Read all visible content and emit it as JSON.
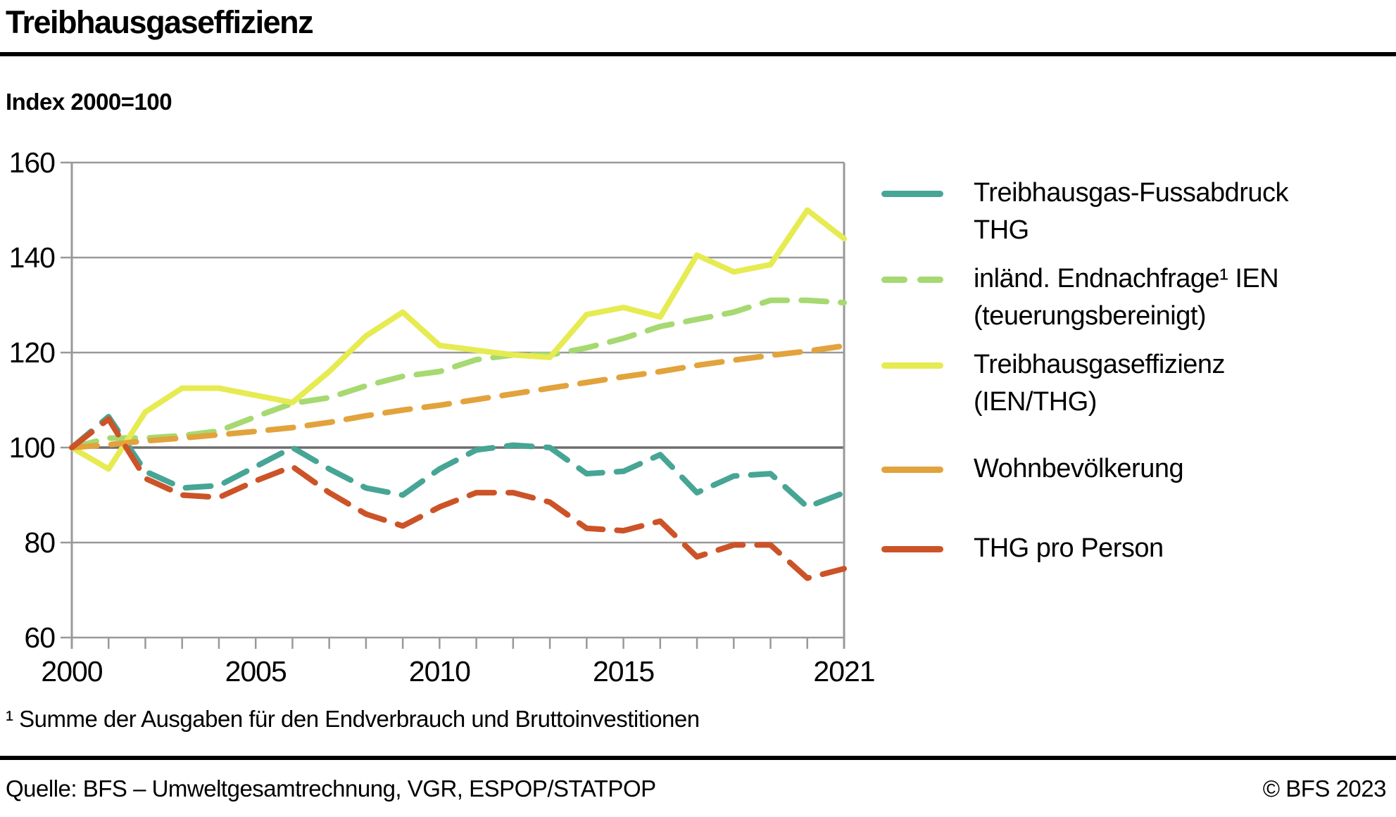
{
  "header": {
    "title": "Treibhausgaseffizienz"
  },
  "subtitle": "Index 2000=100",
  "chart_data": {
    "type": "line",
    "title": "Treibhausgaseffizienz",
    "unit_note": "Index 2000=100",
    "x": [
      2000,
      2001,
      2002,
      2003,
      2004,
      2005,
      2006,
      2007,
      2008,
      2009,
      2010,
      2011,
      2012,
      2013,
      2014,
      2015,
      2016,
      2017,
      2018,
      2019,
      2020,
      2021
    ],
    "x_range": [
      2000,
      2021
    ],
    "y_range": [
      60,
      160
    ],
    "yticks": [
      60,
      80,
      100,
      120,
      140,
      160
    ],
    "xtick_positions": [
      2000,
      2005,
      2010,
      2015,
      2021
    ],
    "xtick_labels": [
      "2000",
      "2005",
      "2010",
      "2015",
      "2021"
    ],
    "emphasized_gridline": 100,
    "grid": true,
    "legend_position": "right",
    "series": [
      {
        "key": "thg",
        "name": "Treibhausgas-Fussabdruck THG",
        "color": "#47a595",
        "dashed": true,
        "values": [
          100,
          106.5,
          95,
          91.5,
          92,
          96,
          100,
          95.5,
          91.5,
          90,
          95.5,
          99.5,
          100.5,
          100,
          94.5,
          95,
          98.5,
          90.5,
          94,
          94.5,
          87.5,
          90.5
        ]
      },
      {
        "key": "ien",
        "name": "inländ. Endnachfrage¹ IEN (teuerungsbereinigt)",
        "color": "#a6d971",
        "dashed": true,
        "values": [
          100,
          102,
          102,
          102.5,
          103.5,
          106.5,
          109.3,
          110.5,
          113,
          115,
          116,
          118.5,
          119.5,
          119.5,
          121,
          123,
          125.5,
          127,
          128.5,
          131,
          131,
          130.5
        ]
      },
      {
        "key": "eff",
        "name": "Treibhausgaseffizienz (IEN/THG)",
        "color": "#e6eb52",
        "dashed": false,
        "values": [
          100,
          95.5,
          107.5,
          112.5,
          112.5,
          111,
          109.5,
          116,
          123.5,
          128.5,
          121.5,
          120.5,
          119.5,
          119,
          128,
          129.5,
          127.5,
          140.5,
          137,
          138.5,
          150,
          144
        ]
      },
      {
        "key": "pop",
        "name": "Wohnbevölkerung",
        "color": "#e2a33c",
        "dashed": true,
        "values": [
          100,
          100.6,
          101.4,
          102,
          102.7,
          103.4,
          104.2,
          105.3,
          106.7,
          107.9,
          108.9,
          110.1,
          111.3,
          112.5,
          113.7,
          114.9,
          116,
          117.3,
          118.4,
          119.4,
          120.3,
          121.4
        ]
      },
      {
        "key": "thg_pp",
        "name": "THG pro Person",
        "color": "#cc5328",
        "dashed": true,
        "values": [
          100,
          106,
          93.5,
          90,
          89.5,
          93,
          96,
          90.5,
          86,
          83.5,
          87.5,
          90.5,
          90.5,
          88.5,
          83,
          82.5,
          84.5,
          77,
          79.5,
          79.5,
          72.5,
          74.5
        ]
      }
    ]
  },
  "legend": {
    "items": [
      {
        "line1": "Treibhausgas-Fussabdruck",
        "line2": "THG",
        "color": "#47a595",
        "swatch_style": "solid"
      },
      {
        "line1": "inländ. Endnachfrage¹ IEN",
        "line2": "(teuerungsbereinigt)",
        "color": "#a6d971",
        "swatch_style": "dashed"
      },
      {
        "line1": "Treibhausgaseffizienz",
        "line2": "(IEN/THG)",
        "color": "#e6eb52",
        "swatch_style": "solid"
      },
      {
        "line1": "Wohnbevölkerung",
        "line2": "",
        "color": "#e2a33c",
        "swatch_style": "solid"
      },
      {
        "line1": "THG pro Person",
        "line2": "",
        "color": "#cc5328",
        "swatch_style": "solid"
      }
    ]
  },
  "footnote": "¹ Summe der Ausgaben für den Endverbrauch und Bruttoinvestitionen",
  "footer": {
    "source": "Quelle: BFS – Umweltgesamtrechnung, VGR, ESPOP/STATPOP",
    "copyright": "© BFS 2023"
  },
  "colors": {
    "grid": "#999999",
    "grid_emphasized": "#6e6e6e",
    "rule": "#000000",
    "background": "#ffffff"
  }
}
